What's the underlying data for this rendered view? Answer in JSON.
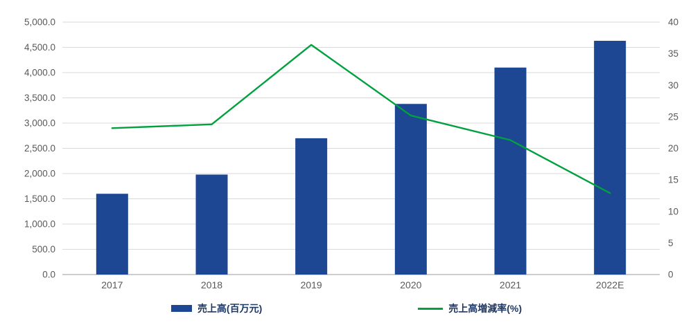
{
  "chart_data": {
    "type": "bar",
    "subtype": "combo-bar-line",
    "categories": [
      "2017",
      "2018",
      "2019",
      "2020",
      "2021",
      "2022E"
    ],
    "series": [
      {
        "name": "売上高(百万元)",
        "type": "bar",
        "axis": "left",
        "color": "#1d4693",
        "values": [
          1600,
          1980,
          2700,
          3380,
          4100,
          4630
        ]
      },
      {
        "name": "売上高増減率(%)",
        "type": "line",
        "axis": "right",
        "color": "#00a13e",
        "values": [
          23.2,
          23.8,
          36.4,
          25.2,
          21.3,
          12.9
        ]
      }
    ],
    "left_axis": {
      "min": 0,
      "max": 5000,
      "step": 500,
      "tick_labels": [
        "0.0",
        "500.0",
        "1,000.0",
        "1,500.0",
        "2,000.0",
        "2,500.0",
        "3,000.0",
        "3,500.0",
        "4,000.0",
        "4,500.0",
        "5,000.0"
      ]
    },
    "right_axis": {
      "min": 0,
      "max": 40,
      "step": 5,
      "tick_labels": [
        "0",
        "5",
        "10",
        "15",
        "20",
        "25",
        "30",
        "35",
        "40"
      ]
    },
    "grid": true,
    "legend_position": "bottom",
    "colors": {
      "grid": "#d9d9d9",
      "axis_line": "#9b9b9b",
      "tick_text": "#595959",
      "background": "#ffffff"
    }
  }
}
